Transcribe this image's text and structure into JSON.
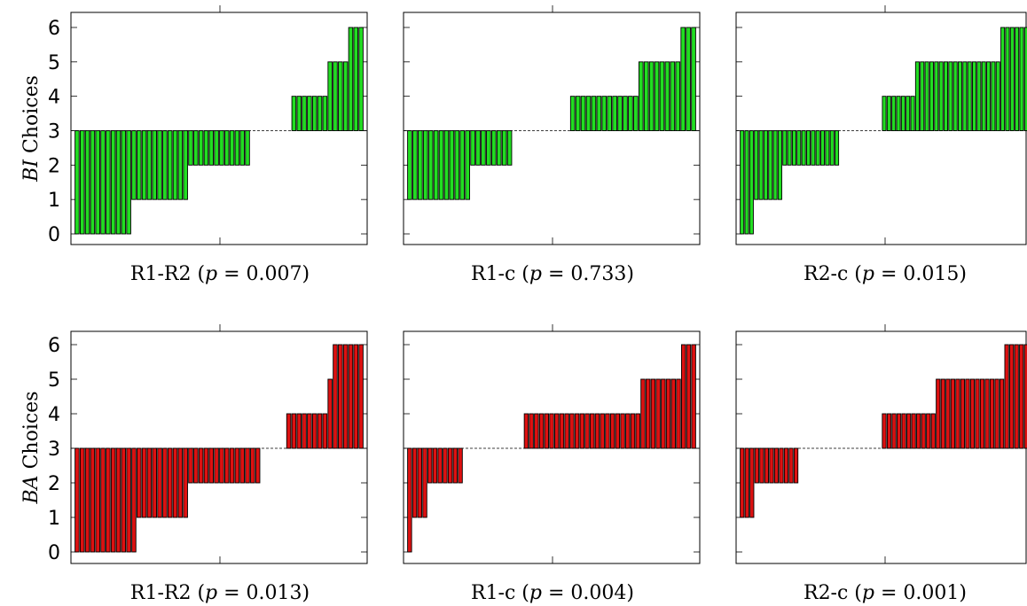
{
  "chart_data": [
    {
      "type": "bar",
      "row": "BI",
      "xlabel_prefix": "R1-R2 (",
      "xlabel_var": "p",
      "xlabel_rest": " = 0.007)",
      "ylabel_var": "BI",
      "ylabel_rest": " Choices",
      "baseline": 3,
      "ylim": [
        0,
        6
      ],
      "yticks": [
        "0",
        "1",
        "2",
        "3",
        "4",
        "5",
        "6"
      ],
      "color": "#22dd22",
      "values": [
        0,
        0,
        0,
        0,
        0,
        0,
        0,
        0,
        0,
        0,
        0,
        1,
        1,
        1,
        1,
        1,
        1,
        1,
        1,
        1,
        1,
        1,
        2,
        2,
        2,
        2,
        2,
        2,
        2,
        2,
        2,
        2,
        2,
        2,
        3,
        3,
        3,
        3,
        3,
        3,
        3,
        3,
        4,
        4,
        4,
        4,
        4,
        4,
        4,
        5,
        5,
        5,
        5,
        6,
        6,
        6
      ]
    },
    {
      "type": "bar",
      "row": "BI",
      "xlabel_prefix": "R1-c (",
      "xlabel_var": "p",
      "xlabel_rest": " = 0.733)",
      "ylabel_var": "",
      "ylabel_rest": "",
      "baseline": 3,
      "ylim": [
        0,
        6
      ],
      "yticks": [
        "0",
        "1",
        "2",
        "3",
        "4",
        "5",
        "6"
      ],
      "color": "#22dd22",
      "values": [
        1,
        1,
        1,
        1,
        1,
        1,
        1,
        1,
        1,
        1,
        1,
        1,
        2,
        2,
        2,
        2,
        2,
        2,
        2,
        2,
        3,
        3,
        3,
        3,
        3,
        3,
        3,
        3,
        3,
        3,
        3,
        4,
        4,
        4,
        4,
        4,
        4,
        4,
        4,
        4,
        4,
        4,
        4,
        4,
        5,
        5,
        5,
        5,
        5,
        5,
        5,
        5,
        6,
        6,
        6
      ]
    },
    {
      "type": "bar",
      "row": "BI",
      "xlabel_prefix": "R2-c (",
      "xlabel_var": "p",
      "xlabel_rest": " = 0.015)",
      "ylabel_var": "",
      "ylabel_rest": "",
      "baseline": 3,
      "ylim": [
        0,
        6
      ],
      "yticks": [
        "0",
        "1",
        "2",
        "3",
        "4",
        "5",
        "6"
      ],
      "color": "#22dd22",
      "values": [
        0,
        0,
        0,
        1,
        1,
        1,
        1,
        1,
        1,
        2,
        2,
        2,
        2,
        2,
        2,
        2,
        2,
        2,
        2,
        2,
        2,
        3,
        3,
        3,
        3,
        3,
        3,
        3,
        3,
        3,
        4,
        4,
        4,
        4,
        4,
        4,
        4,
        5,
        5,
        5,
        5,
        5,
        5,
        5,
        5,
        5,
        5,
        5,
        5,
        5,
        5,
        5,
        5,
        5,
        5,
        6,
        6,
        6,
        6,
        6,
        6
      ]
    },
    {
      "type": "bar",
      "row": "BA",
      "xlabel_prefix": "R1-R2 (",
      "xlabel_var": "p",
      "xlabel_rest": " = 0.013)",
      "ylabel_var": "BA",
      "ylabel_rest": " Choices",
      "baseline": 3,
      "ylim": [
        0,
        6
      ],
      "yticks": [
        "0",
        "1",
        "2",
        "3",
        "4",
        "5",
        "6"
      ],
      "color": "#dd1111",
      "values": [
        0,
        0,
        0,
        0,
        0,
        0,
        0,
        0,
        0,
        0,
        0,
        0,
        1,
        1,
        1,
        1,
        1,
        1,
        1,
        1,
        1,
        1,
        2,
        2,
        2,
        2,
        2,
        2,
        2,
        2,
        2,
        2,
        2,
        2,
        2,
        2,
        3,
        3,
        3,
        3,
        3,
        4,
        4,
        4,
        4,
        4,
        4,
        4,
        4,
        5,
        6,
        6,
        6,
        6,
        6,
        6
      ]
    },
    {
      "type": "bar",
      "row": "BA",
      "xlabel_prefix": "R1-c (",
      "xlabel_var": "p",
      "xlabel_rest": " = 0.004)",
      "ylabel_var": "",
      "ylabel_rest": "",
      "baseline": 3,
      "ylim": [
        0,
        6
      ],
      "yticks": [
        "0",
        "1",
        "2",
        "3",
        "4",
        "5",
        "6"
      ],
      "color": "#dd1111",
      "values": [
        0,
        1,
        1,
        1,
        2,
        2,
        2,
        2,
        2,
        2,
        2,
        3,
        3,
        3,
        3,
        3,
        3,
        3,
        3,
        3,
        3,
        3,
        3,
        4,
        4,
        4,
        4,
        4,
        4,
        4,
        4,
        4,
        4,
        4,
        4,
        4,
        4,
        4,
        4,
        4,
        4,
        4,
        4,
        4,
        4,
        4,
        5,
        5,
        5,
        5,
        5,
        5,
        5,
        5,
        6,
        6,
        6
      ]
    },
    {
      "type": "bar",
      "row": "BA",
      "xlabel_prefix": "R2-c (",
      "xlabel_var": "p",
      "xlabel_rest": " = 0.001)",
      "ylabel_var": "",
      "ylabel_rest": "",
      "baseline": 3,
      "ylim": [
        0,
        6
      ],
      "yticks": [
        "0",
        "1",
        "2",
        "3",
        "4",
        "5",
        "6"
      ],
      "color": "#dd1111",
      "values": [
        1,
        1,
        1,
        2,
        2,
        2,
        2,
        2,
        2,
        2,
        2,
        2,
        3,
        3,
        3,
        3,
        3,
        3,
        3,
        3,
        3,
        3,
        3,
        3,
        3,
        3,
        3,
        3,
        3,
        4,
        4,
        4,
        4,
        4,
        4,
        4,
        4,
        4,
        4,
        4,
        5,
        5,
        5,
        5,
        5,
        5,
        5,
        5,
        5,
        5,
        5,
        5,
        5,
        5,
        6,
        6,
        6,
        6,
        6
      ]
    }
  ]
}
